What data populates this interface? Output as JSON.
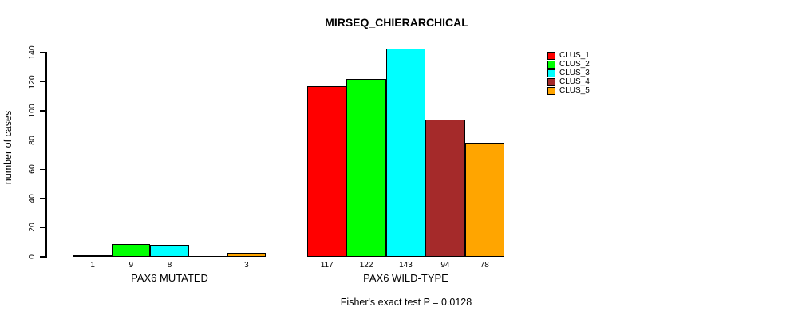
{
  "chart_data": {
    "type": "bar",
    "title": "MIRSEQ_CHIERARCHICAL",
    "ylabel": "number of cases",
    "xlabel": "",
    "ylim": [
      0,
      140
    ],
    "yticks": [
      0,
      20,
      40,
      60,
      80,
      100,
      120,
      140
    ],
    "grid": false,
    "legend_position": "right",
    "annotation": "Fisher's exact test P = 0.0128",
    "series_names": [
      "CLUS_1",
      "CLUS_2",
      "CLUS_3",
      "CLUS_4",
      "CLUS_5"
    ],
    "series_colors": [
      "#ff0000",
      "#00ff00",
      "#00ffff",
      "#a52a2a",
      "#ffa500"
    ],
    "groups": [
      {
        "label": "PAX6 MUTATED",
        "values": [
          1,
          9,
          8,
          0,
          3
        ],
        "value_labels": [
          "1",
          "9",
          "8",
          "",
          "3"
        ]
      },
      {
        "label": "PAX6 WILD-TYPE",
        "values": [
          117,
          122,
          143,
          94,
          78
        ],
        "value_labels": [
          "117",
          "122",
          "143",
          "94",
          "78"
        ]
      }
    ]
  },
  "legend": {
    "items": [
      {
        "label": "CLUS_1",
        "color": "#ff0000"
      },
      {
        "label": "CLUS_2",
        "color": "#00ff00"
      },
      {
        "label": "CLUS_3",
        "color": "#00ffff"
      },
      {
        "label": "CLUS_4",
        "color": "#a52a2a"
      },
      {
        "label": "CLUS_5",
        "color": "#ffa500"
      }
    ]
  }
}
